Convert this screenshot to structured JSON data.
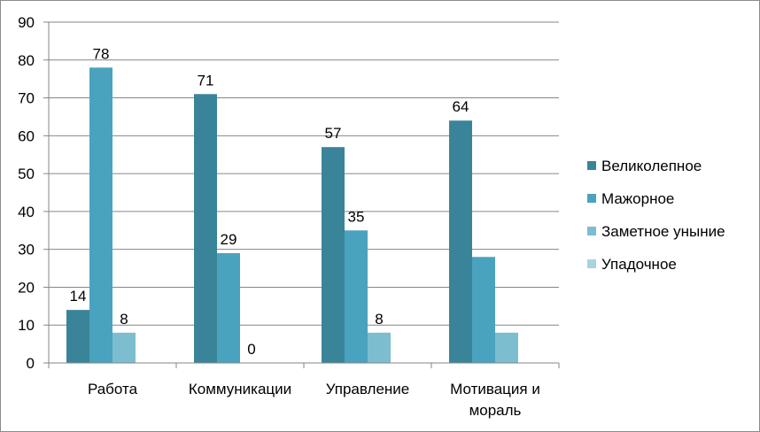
{
  "chart_data": {
    "type": "bar",
    "categories": [
      [
        "Работа"
      ],
      [
        "Коммуникации"
      ],
      [
        "Управление"
      ],
      [
        "Мотивация и",
        "мораль"
      ]
    ],
    "series": [
      {
        "name": "Великолепное",
        "values": [
          14,
          71,
          57,
          64
        ],
        "color": "#3a8499"
      },
      {
        "name": "Мажорное",
        "values": [
          78,
          29,
          35,
          28
        ],
        "color": "#4aa3be"
      },
      {
        "name": "Заметное уныние",
        "values": [
          8,
          0,
          8,
          8
        ],
        "color": "#7dbdd0"
      },
      {
        "name": "Упадочное",
        "values": [
          0,
          0,
          0,
          0
        ],
        "color": "#a9d3df"
      }
    ],
    "ylim": [
      0,
      90
    ],
    "yticks": [
      0,
      10,
      20,
      30,
      40,
      50,
      60,
      70,
      80,
      90
    ],
    "data_labels": [
      [
        true,
        true,
        true,
        true
      ],
      [
        true,
        true,
        true,
        false
      ],
      [
        true,
        true,
        true,
        false
      ]
    ],
    "grid": true,
    "legend_position": "right",
    "axis_color": "#868686",
    "grid_color": "#868686"
  }
}
